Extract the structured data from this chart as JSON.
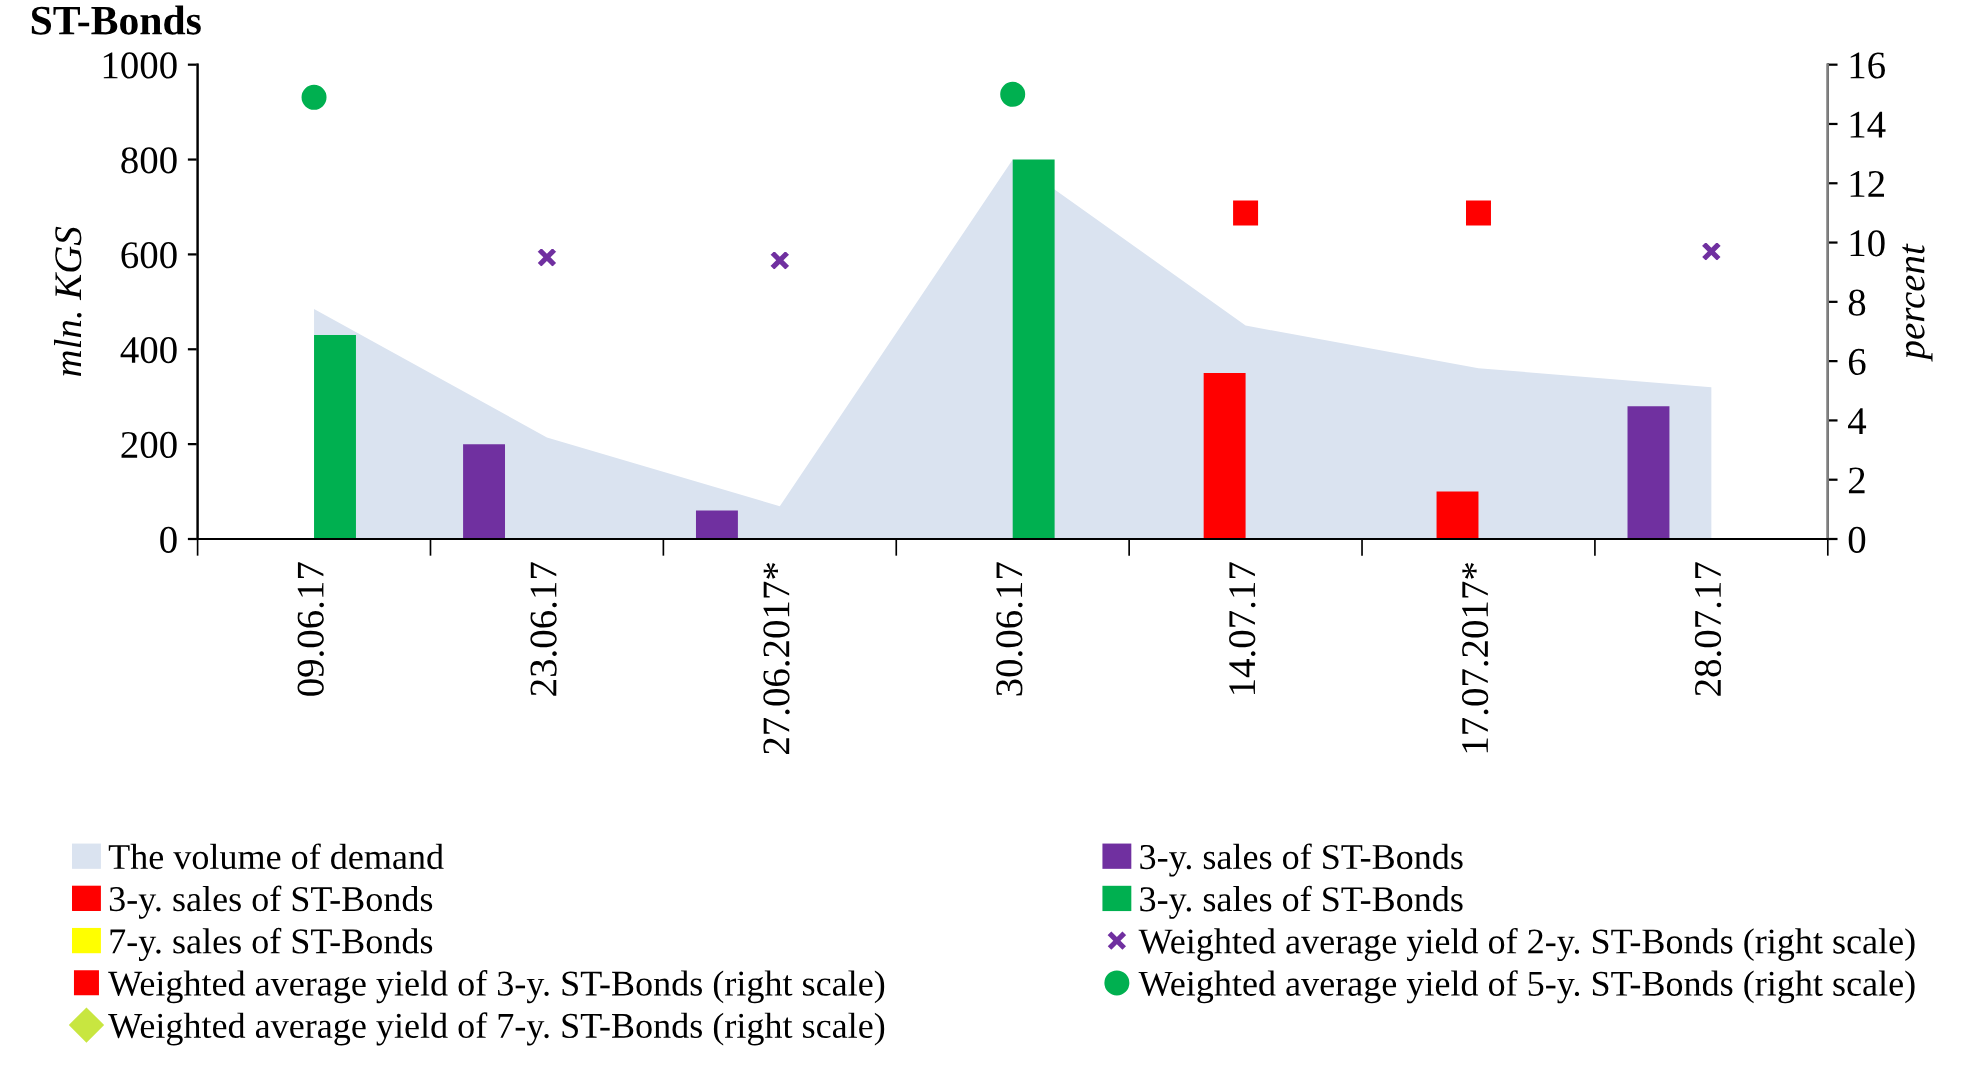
{
  "chart_data": {
    "type": "bar",
    "title": "ST-Bonds",
    "ylabel": "mln. KGS",
    "y2label": "percent",
    "categories": [
      "09.06.17",
      "23.06.17",
      "27.06.2017*",
      "30.06.17",
      "14.07.17",
      "17.07.2017*",
      "28.07.17"
    ],
    "ylim": [
      0,
      1000
    ],
    "yticks": [
      0,
      200,
      400,
      600,
      800,
      1000
    ],
    "y2lim": [
      0,
      16
    ],
    "y2ticks": [
      0,
      2,
      4,
      6,
      8,
      10,
      12,
      14,
      16
    ],
    "grid": false,
    "legend": "bottom",
    "series": [
      {
        "name": "The volume of demand",
        "type": "area",
        "color": "#dae3f0",
        "values": [
          485,
          214,
          69,
          800,
          450,
          360,
          320
        ]
      },
      {
        "name": "3-y. sales of ST-Bonds",
        "color": "#7030a0",
        "values": [
          null,
          200,
          60,
          null,
          null,
          null,
          280
        ]
      },
      {
        "name": "3-y. sales of ST-Bonds",
        "color": "#ff0000",
        "values": [
          null,
          null,
          null,
          null,
          350,
          100,
          null
        ]
      },
      {
        "name": "3-y. sales of ST-Bonds",
        "color": "#00b050",
        "values": [
          430,
          null,
          null,
          800,
          null,
          null,
          null
        ]
      },
      {
        "name": "7-y. sales of ST-Bonds",
        "color": "#ffff00",
        "values": [
          null,
          null,
          null,
          null,
          null,
          null,
          null
        ]
      },
      {
        "name": "Weighted average yield of 2-y. ST-Bonds (right scale)",
        "type": "scatter",
        "axis": "y2",
        "marker": "cross",
        "color": "#7030a0",
        "values": [
          null,
          9.5,
          9.4,
          null,
          null,
          null,
          9.7
        ]
      },
      {
        "name": "Weighted average yield of 3-y. ST-Bonds (right scale)",
        "type": "scatter",
        "axis": "y2",
        "marker": "square",
        "color": "#ff0000",
        "values": [
          null,
          null,
          null,
          null,
          11.0,
          11.0,
          null
        ]
      },
      {
        "name": "Weighted average yield of 5-y. ST-Bonds (right scale)",
        "type": "scatter",
        "axis": "y2",
        "marker": "circle",
        "color": "#00b050",
        "values": [
          14.9,
          null,
          null,
          15.0,
          null,
          null,
          null
        ]
      },
      {
        "name": "Weighted average yield of 7-y. ST-Bonds (right scale)",
        "type": "scatter",
        "axis": "y2",
        "marker": "diamond",
        "color": "#c8e640",
        "values": [
          null,
          null,
          null,
          null,
          null,
          null,
          null
        ]
      }
    ]
  }
}
